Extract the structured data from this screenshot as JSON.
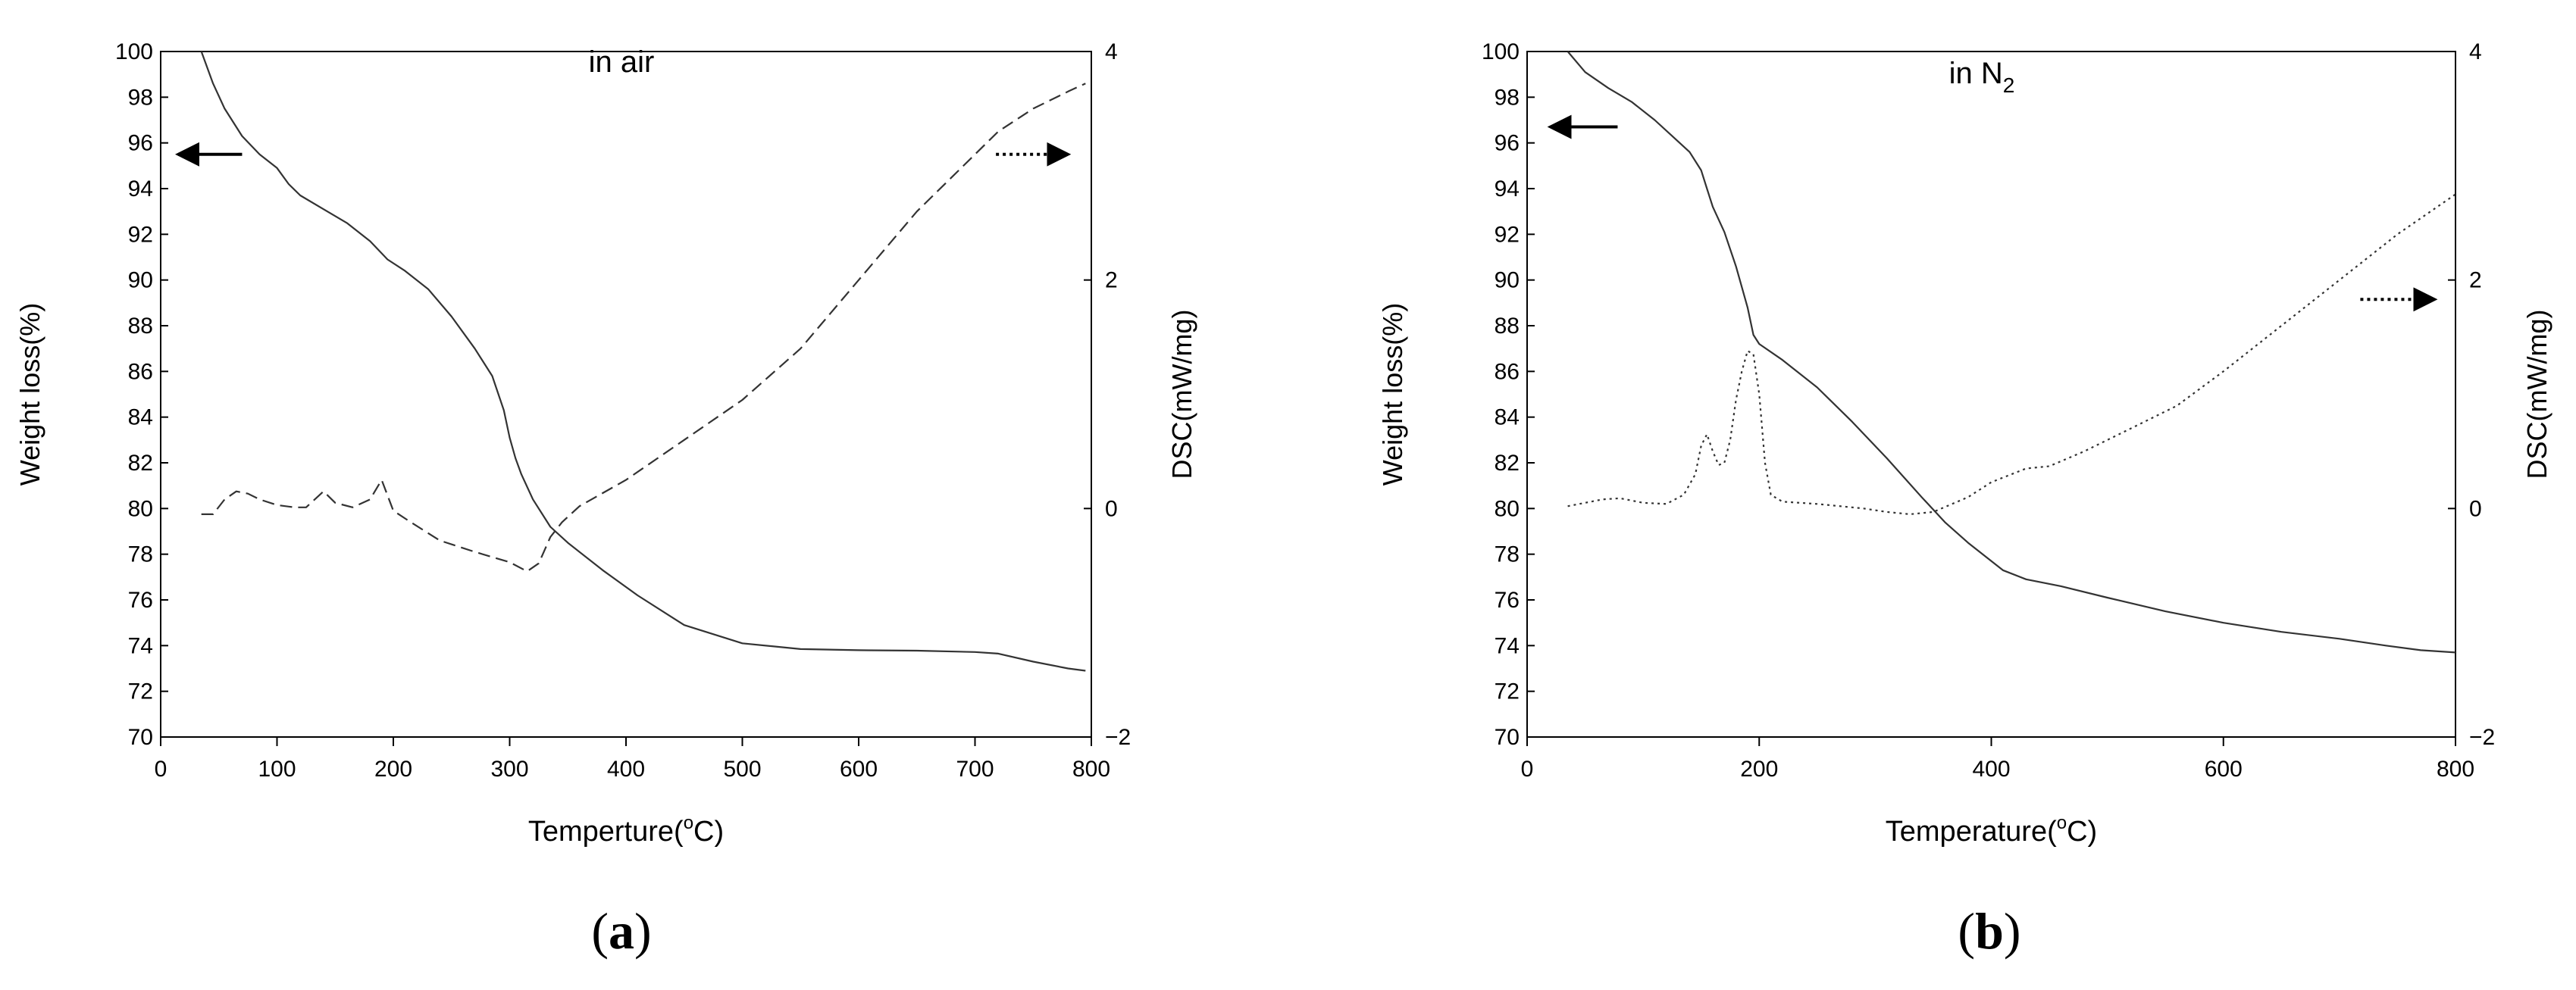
{
  "figure": {
    "panels": [
      {
        "label_open": "(",
        "label_letter": "a",
        "label_close": ")"
      },
      {
        "label_open": "(",
        "label_letter": "b",
        "label_close": ")"
      }
    ]
  },
  "chart_data": [
    {
      "type": "line",
      "annotation": "in air",
      "xlabel": "Temperture(",
      "xlabel_sup": "o",
      "xlabel_end": "C)",
      "ylabel": "Weight loss(%)",
      "y2label": "DSC(mW/mg)",
      "xlim": [
        0,
        800
      ],
      "ylim": [
        70,
        100
      ],
      "y2lim": [
        -2,
        4
      ],
      "xticks": [
        0,
        100,
        200,
        300,
        400,
        500,
        600,
        700,
        800
      ],
      "yticks": [
        70,
        72,
        74,
        76,
        78,
        80,
        82,
        84,
        86,
        88,
        90,
        92,
        94,
        96,
        98,
        100
      ],
      "y2ticks": [
        -2,
        0,
        2,
        4
      ],
      "y2tick_labels": [
        "−2",
        "0",
        "2",
        "4"
      ],
      "series": [
        {
          "axis": "left",
          "style": "solid",
          "x": [
            35,
            45,
            55,
            70,
            85,
            100,
            110,
            120,
            140,
            160,
            180,
            195,
            210,
            230,
            250,
            270,
            285,
            295,
            300,
            305,
            310,
            320,
            335,
            350,
            380,
            410,
            450,
            500,
            550,
            600,
            650,
            700,
            720,
            750,
            780,
            795
          ],
          "y": [
            100,
            98.6,
            97.5,
            96.3,
            95.5,
            94.9,
            94.2,
            93.7,
            93.1,
            92.5,
            91.7,
            90.9,
            90.4,
            89.6,
            88.4,
            87.0,
            85.8,
            84.3,
            83.1,
            82.2,
            81.5,
            80.4,
            79.2,
            78.5,
            77.3,
            76.2,
            74.9,
            74.1,
            73.85,
            73.8,
            73.78,
            73.72,
            73.65,
            73.3,
            73.0,
            72.9
          ]
        },
        {
          "axis": "right",
          "style": "dashed",
          "x": [
            35,
            45,
            55,
            65,
            75,
            85,
            100,
            115,
            125,
            140,
            150,
            165,
            180,
            190,
            200,
            215,
            240,
            270,
            300,
            315,
            325,
            335,
            345,
            360,
            400,
            450,
            500,
            550,
            600,
            650,
            700,
            720,
            750,
            780,
            795
          ],
          "y": [
            -0.05,
            -0.05,
            0.08,
            0.15,
            0.13,
            0.08,
            0.03,
            0.01,
            0.01,
            0.15,
            0.05,
            0.01,
            0.08,
            0.25,
            -0.02,
            -0.12,
            -0.28,
            -0.38,
            -0.47,
            -0.55,
            -0.48,
            -0.25,
            -0.12,
            0.02,
            0.25,
            0.6,
            0.95,
            1.4,
            2.0,
            2.6,
            3.1,
            3.3,
            3.5,
            3.65,
            3.72
          ]
        }
      ],
      "arrows": [
        {
          "axis": "left",
          "direction": "left",
          "style": "solid",
          "x_from": 70,
          "x_to": 15,
          "y": 95.5
        },
        {
          "axis": "right",
          "direction": "right",
          "style": "dotted",
          "x_from": 718,
          "x_to": 780,
          "y": 3.1
        }
      ]
    },
    {
      "type": "line",
      "annotation": "in N",
      "annotation_sub": "2",
      "xlabel": "Temperature(",
      "xlabel_sup": "o",
      "xlabel_end": "C)",
      "ylabel": "Weight loss(%)",
      "y2label": "DSC(mW/mg)",
      "xlim": [
        0,
        800
      ],
      "ylim": [
        70,
        100
      ],
      "y2lim": [
        -2,
        4
      ],
      "xticks": [
        0,
        200,
        400,
        600,
        800
      ],
      "yticks": [
        70,
        72,
        74,
        76,
        78,
        80,
        82,
        84,
        86,
        88,
        90,
        92,
        94,
        96,
        98,
        100
      ],
      "y2ticks": [
        -2,
        0,
        2,
        4
      ],
      "y2tick_labels": [
        "−2",
        "0",
        "2",
        "4"
      ],
      "series": [
        {
          "axis": "left",
          "style": "solid",
          "x": [
            35,
            50,
            70,
            90,
            110,
            125,
            140,
            150,
            155,
            160,
            170,
            180,
            190,
            195,
            200,
            220,
            250,
            280,
            310,
            340,
            360,
            380,
            410,
            430,
            460,
            500,
            550,
            600,
            650,
            700,
            740,
            770,
            800
          ],
          "y": [
            100,
            99.1,
            98.4,
            97.8,
            97.0,
            96.3,
            95.6,
            94.8,
            94.0,
            93.2,
            92.1,
            90.6,
            88.8,
            87.6,
            87.2,
            86.5,
            85.3,
            83.8,
            82.2,
            80.5,
            79.4,
            78.5,
            77.3,
            76.9,
            76.6,
            76.1,
            75.5,
            75.0,
            74.6,
            74.3,
            74.0,
            73.8,
            73.7
          ]
        },
        {
          "axis": "right",
          "style": "dotted",
          "x": [
            35,
            50,
            65,
            80,
            100,
            120,
            135,
            145,
            150,
            155,
            160,
            165,
            170,
            175,
            180,
            185,
            190,
            195,
            200,
            205,
            210,
            220,
            250,
            270,
            290,
            310,
            330,
            350,
            380,
            400,
            430,
            450,
            480,
            520,
            560,
            600,
            650,
            700,
            750,
            800
          ],
          "y": [
            0.02,
            0.05,
            0.08,
            0.09,
            0.05,
            0.04,
            0.12,
            0.3,
            0.55,
            0.65,
            0.5,
            0.38,
            0.4,
            0.6,
            0.95,
            1.2,
            1.38,
            1.35,
            1.0,
            0.4,
            0.12,
            0.06,
            0.04,
            0.02,
            0.0,
            -0.03,
            -0.05,
            -0.03,
            0.1,
            0.23,
            0.35,
            0.37,
            0.5,
            0.7,
            0.9,
            1.2,
            1.6,
            2.0,
            2.4,
            2.75
          ]
        }
      ],
      "arrows": [
        {
          "axis": "left",
          "direction": "left",
          "style": "solid",
          "x_from": 78,
          "x_to": 20,
          "y": 96.7
        },
        {
          "axis": "right",
          "direction": "right",
          "style": "dotted",
          "x_from": 718,
          "x_to": 782,
          "y": 1.83
        }
      ]
    }
  ]
}
